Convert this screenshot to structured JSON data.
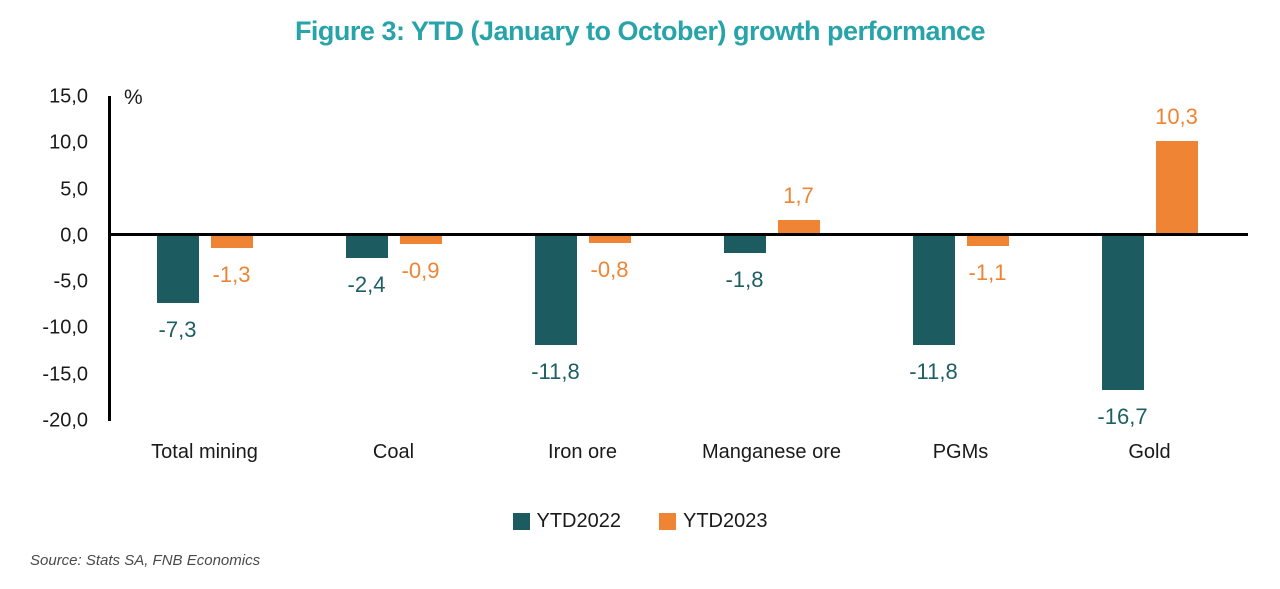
{
  "title": "Figure 3: YTD (January to October) growth performance",
  "source": "Source: Stats SA, FNB Economics",
  "colors": {
    "title_teal": "#27A4A9",
    "ytd2022_teal": "#1C5B60",
    "ytd2023_orange": "#EE8434",
    "axis_black": "#000000",
    "text_black": "#1a1a1a",
    "source_gray": "#4a4a4a"
  },
  "chart_data": {
    "type": "bar",
    "title": "Figure 3: YTD (January to October) growth performance",
    "unit_label": "%",
    "xlabel": "",
    "ylabel": "%",
    "categories": [
      "Total mining",
      "Coal",
      "Iron ore",
      "Manganese ore",
      "PGMs",
      "Gold"
    ],
    "series": [
      {
        "name": "YTD2022",
        "color": "#1C5B60",
        "label_color": "#1E5F64",
        "values": [
          -7.3,
          -2.4,
          -11.8,
          -1.8,
          -11.8,
          -16.7
        ],
        "labels": [
          "-7,3",
          "-2,4",
          "-11,8",
          "-1,8",
          "-11,8",
          "-16,7"
        ]
      },
      {
        "name": "YTD2023",
        "color": "#EE8434",
        "label_color": "#EE8434",
        "values": [
          -1.3,
          -0.9,
          -0.8,
          1.7,
          -1.1,
          10.3
        ],
        "labels": [
          "-1,3",
          "-0,9",
          "-0,8",
          "1,7",
          "-1,1",
          "10,3"
        ]
      }
    ],
    "ylim": [
      -20,
      15
    ],
    "y_ticks": [
      15,
      10,
      5,
      0,
      -5,
      -10,
      -15,
      -20
    ],
    "y_tick_labels": [
      "15,0",
      "10,0",
      "5,0",
      "0,0",
      "-5,0",
      "-10,0",
      "-15,0",
      "-20,0"
    ],
    "grid": false,
    "legend_position": "bottom",
    "decimal_separator": ","
  }
}
